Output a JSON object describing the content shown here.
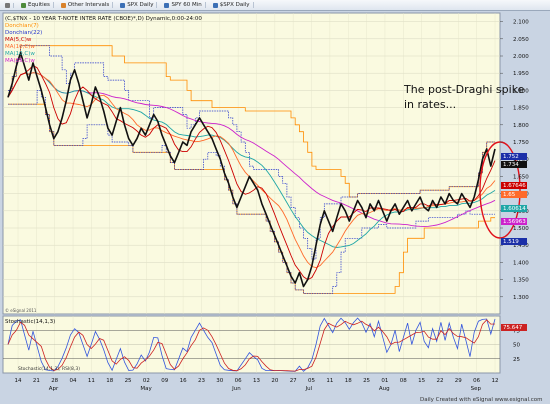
{
  "toolbar": {
    "items": [
      {
        "label": "",
        "icon": "grid-icon"
      },
      {
        "label": "Equities",
        "icon": "equities-icon"
      },
      {
        "label": "Other Intervals",
        "icon": "intervals-icon"
      },
      {
        "label": "SPX Daily",
        "icon": "chart-icon"
      },
      {
        "label": "SPY 60 Min",
        "icon": "chart-icon"
      },
      {
        "label": "$SPX Daily",
        "icon": "chart-icon"
      }
    ]
  },
  "chart_data": {
    "type": "line",
    "title": "(C,$TNX - 10 YEAR T-NOTE INTER RATE (CBOE)*,D) Dynamic,0:00-24:00",
    "indicators": [
      {
        "name": "Donchian(7)",
        "color": "#ff8c00"
      },
      {
        "name": "Donchian(22)",
        "color": "#2233cc"
      },
      {
        "name": "MA(5,C)w",
        "color": "#cc0000"
      },
      {
        "name": "MA(10,C)w",
        "color": "#ff6a2a"
      },
      {
        "name": "MA(10,C)w",
        "color": "#1fa6a6"
      },
      {
        "name": "MA(39,C)w",
        "color": "#cc22cc"
      }
    ],
    "annotation": {
      "text": "The post-Draghi spike in rates...",
      "line1": "The post-Draghi spike",
      "line2": "in rates..."
    },
    "ylim": [
      1.25,
      2.125
    ],
    "y_ticks": [
      "2.100",
      "2.050",
      "2.000",
      "1.950",
      "1.900",
      "1.850",
      "1.800",
      "1.750",
      "1.700",
      "1.650",
      "1.600",
      "1.550",
      "1.500",
      "1.450",
      "1.400",
      "1.350",
      "1.300"
    ],
    "price_series": [
      1.88,
      1.92,
      1.97,
      2.01,
      1.97,
      1.93,
      1.98,
      1.94,
      1.9,
      1.85,
      1.8,
      1.76,
      1.78,
      1.82,
      1.87,
      1.93,
      1.96,
      1.92,
      1.87,
      1.82,
      1.86,
      1.91,
      1.88,
      1.84,
      1.79,
      1.77,
      1.81,
      1.85,
      1.8,
      1.76,
      1.74,
      1.76,
      1.79,
      1.77,
      1.8,
      1.83,
      1.81,
      1.77,
      1.74,
      1.71,
      1.69,
      1.72,
      1.75,
      1.74,
      1.78,
      1.8,
      1.82,
      1.8,
      1.78,
      1.76,
      1.73,
      1.7,
      1.66,
      1.63,
      1.59,
      1.56,
      1.59,
      1.62,
      1.65,
      1.63,
      1.61,
      1.57,
      1.54,
      1.51,
      1.48,
      1.45,
      1.42,
      1.39,
      1.36,
      1.34,
      1.37,
      1.33,
      1.35,
      1.39,
      1.45,
      1.51,
      1.55,
      1.52,
      1.49,
      1.53,
      1.57,
      1.55,
      1.52,
      1.55,
      1.58,
      1.56,
      1.53,
      1.57,
      1.55,
      1.58,
      1.55,
      1.52,
      1.55,
      1.57,
      1.54,
      1.56,
      1.58,
      1.55,
      1.57,
      1.59,
      1.56,
      1.55,
      1.58,
      1.56,
      1.59,
      1.57,
      1.6,
      1.58,
      1.57,
      1.6,
      1.58,
      1.56,
      1.59,
      1.64,
      1.7,
      1.73,
      1.68,
      1.73
    ],
    "annotation_value": "1.734",
    "price_labels": [
      {
        "value": "1.752",
        "color": "#1b2fa8"
      },
      {
        "value": "1.734",
        "color": "#111111"
      },
      {
        "value": "1.67646",
        "color": "#cc0000"
      },
      {
        "value": "1.65",
        "color": "#ff6a2a"
      },
      {
        "value": "1.60614",
        "color": "#1fa6a6"
      },
      {
        "value": "1.56963",
        "color": "#cc22cc"
      },
      {
        "value": "1.519",
        "color": "#1b2fa8"
      }
    ],
    "stoch": {
      "title": "Stochastic(14,1,3)",
      "value": "75.647",
      "ylim": [
        0,
        100
      ],
      "y_ticks": [
        "75",
        "50",
        "25"
      ],
      "legend": "Stochastic(14,1,3), RSI(8,3)"
    },
    "x_ticks": [
      "14",
      "21",
      "28",
      "04",
      "11",
      "18",
      "25",
      "02",
      "09",
      "16",
      "23",
      "30",
      "06",
      "13",
      "20",
      "27",
      "05",
      "11",
      "18",
      "25",
      "01",
      "08",
      "15",
      "22",
      "29",
      "06",
      "12"
    ],
    "months": [
      "Apr",
      "May",
      "Jun",
      "Jul",
      "Aug",
      "Sep"
    ],
    "watermark": "© eSignal 2011",
    "footer": "Daily   Created with eSignal   www.esignal.com"
  }
}
